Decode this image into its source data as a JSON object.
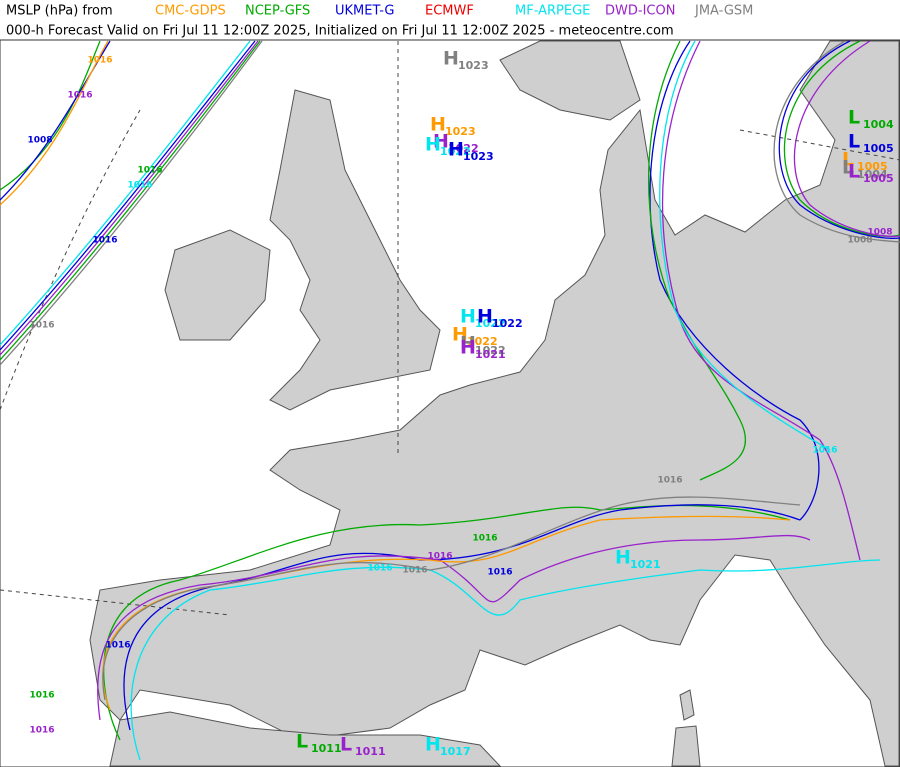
{
  "header": {
    "title": "MSLP (hPa) from",
    "subtitle": "000-h Forecast Valid on Fri Jul 11 12:00Z 2025, Initialized on Fri Jul 11 12:00Z 2025 - meteocentre.com"
  },
  "models": [
    {
      "name": "CMC-GDPS",
      "color": "#ff9900"
    },
    {
      "name": "NCEP-GFS",
      "color": "#00aa00"
    },
    {
      "name": "UKMET-G",
      "color": "#0000dd"
    },
    {
      "name": "ECMWF",
      "color": "#ee0000"
    },
    {
      "name": "MF-ARPEGE",
      "color": "#00e5ee"
    },
    {
      "name": "DWD-ICON",
      "color": "#9922cc"
    },
    {
      "name": "JMA-GSM",
      "color": "#808080"
    }
  ],
  "centers": [
    {
      "type": "H",
      "value": 1023,
      "model": 6
    },
    {
      "type": "H",
      "value": 1023,
      "model": 0
    },
    {
      "type": "H",
      "value": 1022,
      "model": 5
    },
    {
      "type": "H",
      "value": 1022,
      "model": 4
    },
    {
      "type": "H",
      "value": 1023,
      "model": 2
    },
    {
      "type": "H",
      "value": 1022,
      "model": 4
    },
    {
      "type": "H",
      "value": 1022,
      "model": 2
    },
    {
      "type": "H",
      "value": 1022,
      "model": 0
    },
    {
      "type": "H",
      "value": 1022,
      "model": 6
    },
    {
      "type": "H",
      "value": 1021,
      "model": 5
    },
    {
      "type": "L",
      "value": 1004,
      "model": 1
    },
    {
      "type": "L",
      "value": 1005,
      "model": 2
    },
    {
      "type": "L",
      "value": 1005,
      "model": 0
    },
    {
      "type": "L",
      "value": 1004,
      "model": 6
    },
    {
      "type": "L",
      "value": 1005,
      "model": 5
    },
    {
      "type": "H",
      "value": 1021,
      "model": 4
    },
    {
      "type": "L",
      "value": 1011,
      "model": 1
    },
    {
      "type": "L",
      "value": 1011,
      "model": 5
    },
    {
      "type": "H",
      "value": 1017,
      "model": 4
    }
  ],
  "isobar_labels": [
    {
      "value": 1008,
      "model": 2
    },
    {
      "value": 1016,
      "model": 2
    },
    {
      "value": 1016,
      "model": 6
    },
    {
      "value": 1016,
      "model": 1
    },
    {
      "value": 1016,
      "model": 5
    },
    {
      "value": 1016,
      "model": 4
    },
    {
      "value": 1016,
      "model": 0
    },
    {
      "value": 1016,
      "model": 6
    },
    {
      "value": 1016,
      "model": 2
    },
    {
      "value": 1016,
      "model": 5
    },
    {
      "value": 1016,
      "model": 6
    },
    {
      "value": 1016,
      "model": 1
    },
    {
      "value": 1016,
      "model": 2
    },
    {
      "value": 1016,
      "model": 4
    },
    {
      "value": 1016,
      "model": 1
    },
    {
      "value": 1016,
      "model": 5
    },
    {
      "value": 1016,
      "model": 4
    },
    {
      "value": 1008,
      "model": 6
    },
    {
      "value": 1008,
      "model": 5
    }
  ]
}
